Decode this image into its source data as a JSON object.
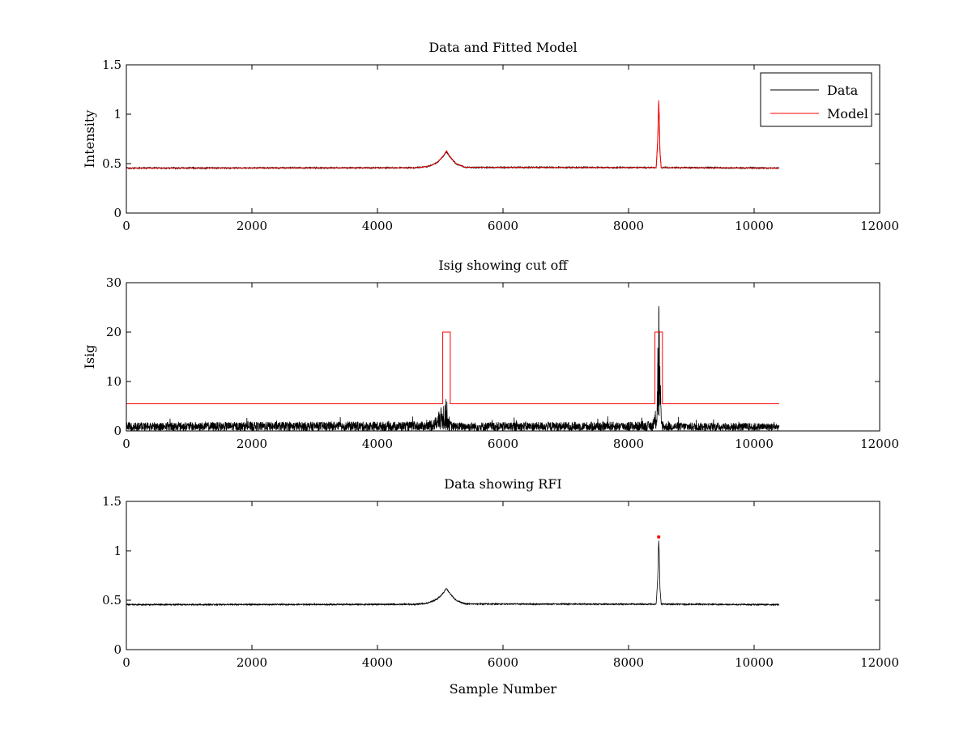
{
  "figure": {
    "background": "#ffffff"
  },
  "chart_data": [
    {
      "type": "line",
      "title": "Data and Fitted Model",
      "xlabel": "",
      "ylabel": "Intensity",
      "xlim": [
        0,
        12000
      ],
      "ylim": [
        0,
        1.5
      ],
      "xticks": [
        0,
        2000,
        4000,
        6000,
        8000,
        10000,
        12000
      ],
      "yticks": [
        0,
        0.5,
        1,
        1.5
      ],
      "xtick_labels": [
        "0",
        "2000",
        "4000",
        "6000",
        "8000",
        "10000",
        "12000"
      ],
      "ytick_labels": [
        "0",
        "0.5",
        "1",
        "1.5"
      ],
      "grid": false,
      "legend": {
        "placement": "top-right",
        "entries": [
          "Data",
          "Model"
        ]
      },
      "series": [
        {
          "name": "Data",
          "color": "#000000",
          "kind": "noisy",
          "x": [
            0,
            4600,
            4800,
            4950,
            5050,
            5100,
            5150,
            5250,
            5400,
            8440,
            8465,
            8480,
            8490,
            8500,
            8520,
            10400
          ],
          "values": [
            0.455,
            0.458,
            0.47,
            0.51,
            0.575,
            0.62,
            0.57,
            0.5,
            0.462,
            0.46,
            0.72,
            1.12,
            0.95,
            0.62,
            0.46,
            0.455
          ],
          "noise": 0.006
        },
        {
          "name": "Model",
          "color": "#ff0000",
          "kind": "line",
          "x": [
            0,
            4600,
            4800,
            4950,
            5050,
            5100,
            5150,
            5250,
            5400,
            8440,
            8465,
            8480,
            8490,
            8500,
            8520,
            10400
          ],
          "values": [
            0.455,
            0.458,
            0.47,
            0.51,
            0.58,
            0.63,
            0.575,
            0.5,
            0.462,
            0.46,
            0.75,
            1.14,
            0.95,
            0.62,
            0.46,
            0.455
          ]
        }
      ]
    },
    {
      "type": "line",
      "title": "Isig showing cut off",
      "xlabel": "",
      "ylabel": "Isig",
      "xlim": [
        0,
        12000
      ],
      "ylim": [
        0,
        30
      ],
      "xticks": [
        0,
        2000,
        4000,
        6000,
        8000,
        10000,
        12000
      ],
      "yticks": [
        0,
        10,
        20,
        30
      ],
      "xtick_labels": [
        "0",
        "2000",
        "4000",
        "6000",
        "8000",
        "10000",
        "12000"
      ],
      "ytick_labels": [
        "0",
        "10",
        "20",
        "30"
      ],
      "grid": false,
      "series": [
        {
          "name": "Isig",
          "color": "#000000",
          "kind": "noisy",
          "x": [
            0,
            4800,
            4950,
            5050,
            5100,
            5150,
            5200,
            8400,
            8450,
            8480,
            8500,
            8520,
            8560,
            10400
          ],
          "values": [
            1.1,
            1.2,
            2.0,
            3.6,
            4.2,
            1.4,
            1.1,
            1.2,
            4.0,
            20.0,
            9.0,
            2.0,
            1.1,
            1.0
          ],
          "noise": 1.1
        },
        {
          "name": "Cut off",
          "color": "#ff0000",
          "kind": "step",
          "x": [
            0,
            5040,
            5040,
            5160,
            5160,
            8420,
            8420,
            8540,
            8540,
            10400
          ],
          "values": [
            5.5,
            5.5,
            20,
            20,
            5.5,
            5.5,
            20,
            20,
            5.5,
            5.5
          ]
        }
      ]
    },
    {
      "type": "line",
      "title": "Data showing RFI",
      "xlabel": "Sample Number",
      "ylabel": "",
      "xlim": [
        0,
        12000
      ],
      "ylim": [
        0,
        1.5
      ],
      "xticks": [
        0,
        2000,
        4000,
        6000,
        8000,
        10000,
        12000
      ],
      "yticks": [
        0,
        0.5,
        1,
        1.5
      ],
      "xtick_labels": [
        "0",
        "2000",
        "4000",
        "6000",
        "8000",
        "10000",
        "12000"
      ],
      "ytick_labels": [
        "0",
        "0.5",
        "1",
        "1.5"
      ],
      "grid": false,
      "series": [
        {
          "name": "Data",
          "color": "#000000",
          "kind": "noisy",
          "x": [
            0,
            4600,
            4800,
            4950,
            5050,
            5100,
            5150,
            5250,
            5400,
            8440,
            8465,
            8480,
            8490,
            8500,
            8520,
            10400
          ],
          "values": [
            0.455,
            0.458,
            0.47,
            0.51,
            0.575,
            0.62,
            0.57,
            0.5,
            0.462,
            0.46,
            0.72,
            1.12,
            0.95,
            0.62,
            0.46,
            0.455
          ],
          "noise": 0.006
        },
        {
          "name": "RFI",
          "color": "#ff0000",
          "kind": "points",
          "x": [
            8480
          ],
          "values": [
            1.14
          ]
        }
      ]
    }
  ]
}
